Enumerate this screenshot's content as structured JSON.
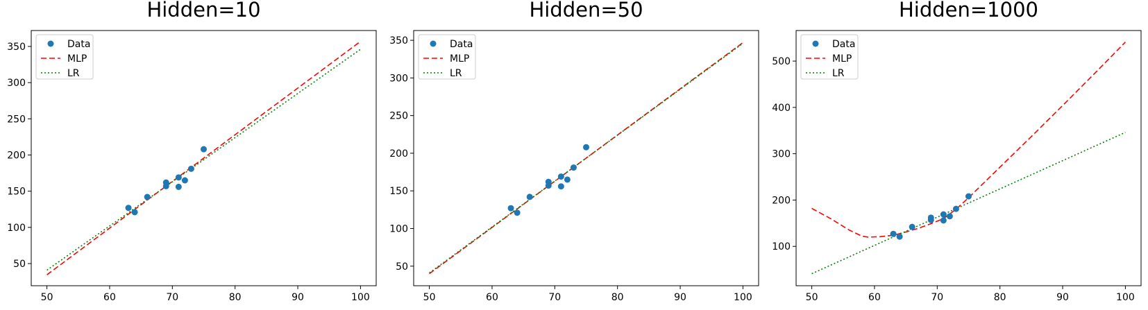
{
  "figure": {
    "background": "#ffffff",
    "colors": {
      "data": "#1f77b4",
      "mlp": "#ff0000",
      "lr": "#008000"
    },
    "legend_placement": "upper-left"
  },
  "chart_data": [
    {
      "type": "scatter",
      "title": "Hidden=10",
      "xlabel": "",
      "ylabel": "",
      "xlim": [
        47.5,
        102.5
      ],
      "ylim": [
        19.4,
        372
      ],
      "xticks": [
        50,
        60,
        70,
        80,
        90,
        100
      ],
      "yticks": [
        50,
        100,
        150,
        200,
        250,
        300,
        350
      ],
      "grid": false,
      "legend": [
        "Data",
        "MLP",
        "LR"
      ],
      "series": [
        {
          "name": "Data",
          "kind": "scatter",
          "x": [
            63,
            64,
            66,
            69,
            69,
            71,
            71,
            72,
            73,
            75
          ],
          "y": [
            127,
            121,
            142,
            157,
            162,
            169,
            156,
            165,
            181,
            208
          ]
        },
        {
          "name": "MLP",
          "kind": "line",
          "style": "dashed",
          "x": [
            50,
            100
          ],
          "y": [
            34.5,
            357
          ]
        },
        {
          "name": "LR",
          "kind": "line",
          "style": "dotted",
          "x": [
            50,
            100
          ],
          "y": [
            41,
            346
          ]
        }
      ]
    },
    {
      "type": "scatter",
      "title": "Hidden=50",
      "xlabel": "",
      "ylabel": "",
      "xlim": [
        47.5,
        102.5
      ],
      "ylim": [
        24,
        363
      ],
      "xticks": [
        50,
        60,
        70,
        80,
        90,
        100
      ],
      "yticks": [
        50,
        100,
        150,
        200,
        250,
        300,
        350
      ],
      "grid": false,
      "legend": [
        "Data",
        "MLP",
        "LR"
      ],
      "series": [
        {
          "name": "Data",
          "kind": "scatter",
          "x": [
            63,
            64,
            66,
            69,
            69,
            71,
            71,
            72,
            73,
            75
          ],
          "y": [
            127,
            121,
            142,
            157,
            162,
            169,
            156,
            165,
            181,
            208
          ]
        },
        {
          "name": "MLP",
          "kind": "line",
          "style": "dashed",
          "x": [
            50,
            100
          ],
          "y": [
            40,
            347
          ]
        },
        {
          "name": "LR",
          "kind": "line",
          "style": "dotted",
          "x": [
            50,
            100
          ],
          "y": [
            41,
            346
          ]
        }
      ]
    },
    {
      "type": "scatter",
      "title": "Hidden=1000",
      "xlabel": "",
      "ylabel": "",
      "xlim": [
        47.5,
        102.5
      ],
      "ylim": [
        15,
        566
      ],
      "xticks": [
        50,
        60,
        70,
        80,
        90,
        100
      ],
      "yticks": [
        100,
        200,
        300,
        400,
        500
      ],
      "grid": false,
      "legend": [
        "Data",
        "MLP",
        "LR"
      ],
      "series": [
        {
          "name": "Data",
          "kind": "scatter",
          "x": [
            63,
            64,
            66,
            69,
            69,
            71,
            71,
            72,
            73,
            75
          ],
          "y": [
            127,
            121,
            142,
            157,
            162,
            169,
            156,
            165,
            181,
            208
          ]
        },
        {
          "name": "MLP",
          "kind": "line",
          "style": "dashed",
          "x": [
            50,
            53,
            56,
            58,
            59,
            61,
            63,
            65,
            67,
            69,
            71,
            73,
            75,
            80,
            85,
            90,
            95,
            100
          ],
          "y": [
            182,
            160,
            135,
            122,
            120,
            121,
            124,
            131,
            139,
            149,
            160,
            180,
            205,
            271,
            337,
            404,
            472,
            541
          ]
        },
        {
          "name": "LR",
          "kind": "line",
          "style": "dotted",
          "x": [
            50,
            100
          ],
          "y": [
            41,
            346
          ]
        }
      ]
    }
  ]
}
